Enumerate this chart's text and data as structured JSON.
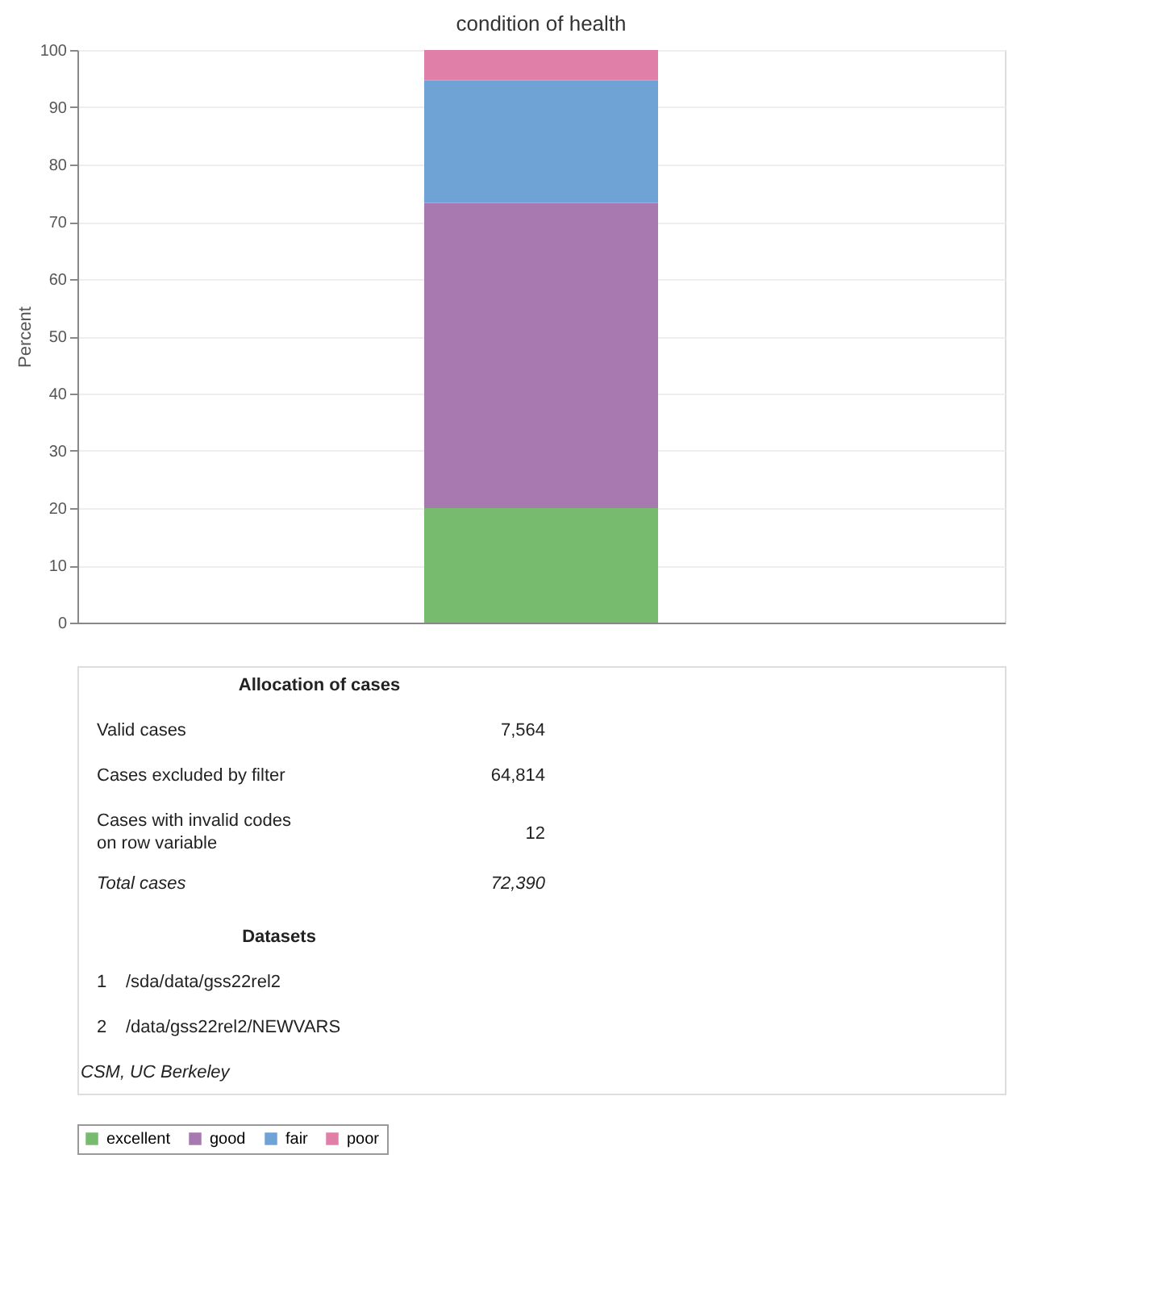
{
  "chart_data": {
    "type": "bar",
    "title": "condition of health",
    "ylabel": "Percent",
    "categories": [
      null
    ],
    "stacked": true,
    "series": [
      {
        "name": "excellent",
        "color": "#77bb6e",
        "values": [
          20
        ]
      },
      {
        "name": "good",
        "color": "#a878b0",
        "values": [
          53.3
        ]
      },
      {
        "name": "fair",
        "color": "#6fa3d6",
        "values": [
          21.4
        ]
      },
      {
        "name": "poor",
        "color": "#e080a8",
        "values": [
          5.3
        ]
      }
    ],
    "ylim": [
      0,
      100
    ],
    "yticks": [
      0,
      10,
      20,
      30,
      40,
      50,
      60,
      70,
      80,
      90,
      100
    ],
    "grid": "y",
    "legend": "bottom",
    "tick_labels": "y",
    "annotations": [
      "Allocation of cases",
      "Valid cases",
      "7,564",
      "Cases excluded by filter",
      "64,814",
      "Cases with invalid codes on row variable",
      "12",
      "Total cases",
      "72,390",
      "Datasets",
      "1",
      "/sda/data/gss22rel2",
      "2",
      "/data/gss22rel2/NEWVARS",
      "CSM, UC Berkeley"
    ]
  }
}
